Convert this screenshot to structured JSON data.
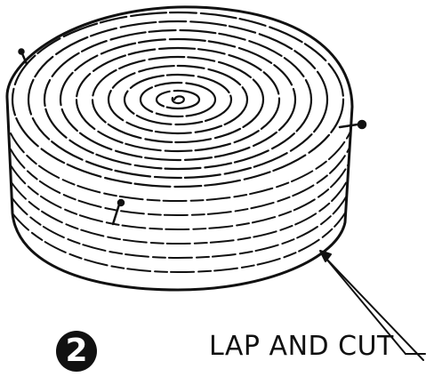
{
  "figure": {
    "step_number": "2",
    "callout": "LAP AND CUT"
  }
}
